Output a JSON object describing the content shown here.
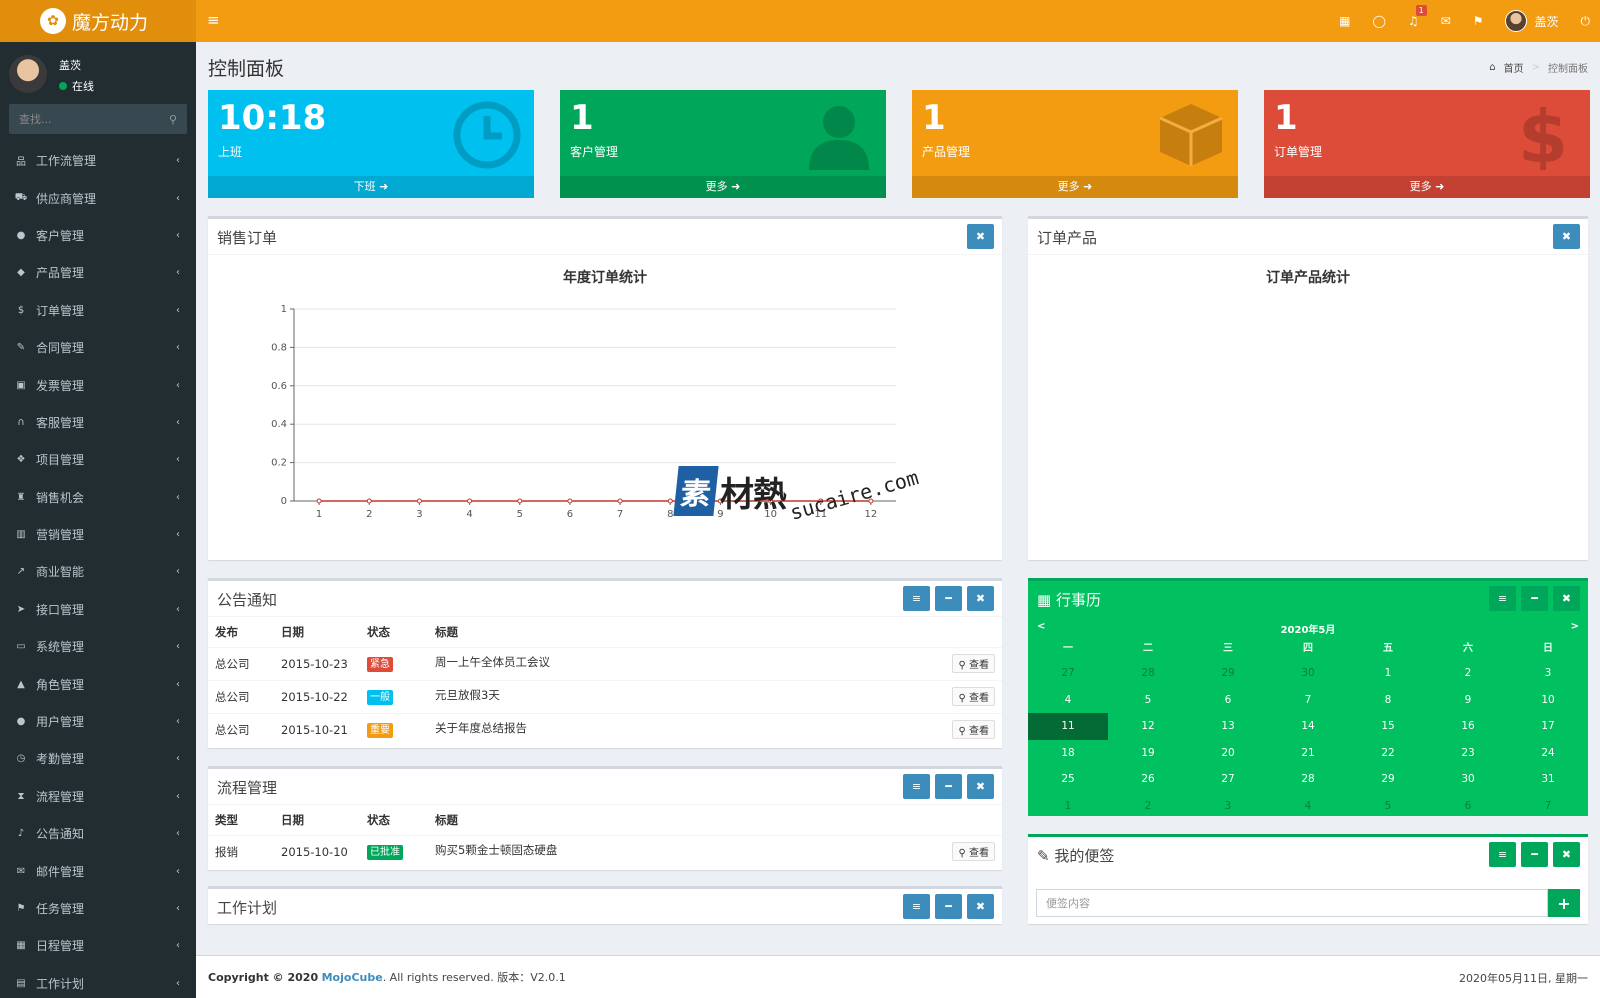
{
  "app": {
    "title": "魔方动力"
  },
  "topbar": {
    "notification_count": "1",
    "user_name": "盖茨"
  },
  "sidebar": {
    "user_name": "盖茨",
    "user_status": "在线",
    "search_placeholder": "查找...",
    "items": [
      {
        "label": "工作流管理",
        "icon": "sitemap-icon",
        "glyph": "品"
      },
      {
        "label": "供应商管理",
        "icon": "truck-icon",
        "glyph": "⛟"
      },
      {
        "label": "客户管理",
        "icon": "user-icon",
        "glyph": "●"
      },
      {
        "label": "产品管理",
        "icon": "cube-icon",
        "glyph": "◆"
      },
      {
        "label": "订单管理",
        "icon": "dollar-icon",
        "glyph": "$"
      },
      {
        "label": "合同管理",
        "icon": "pencil-icon",
        "glyph": "✎"
      },
      {
        "label": "发票管理",
        "icon": "money-icon",
        "glyph": "▣"
      },
      {
        "label": "客服管理",
        "icon": "headphones-icon",
        "glyph": "∩"
      },
      {
        "label": "项目管理",
        "icon": "cubes-icon",
        "glyph": "❖"
      },
      {
        "label": "销售机会",
        "icon": "binoculars-icon",
        "glyph": "♜"
      },
      {
        "label": "营销管理",
        "icon": "bar-chart-icon",
        "glyph": "▥"
      },
      {
        "label": "商业智能",
        "icon": "line-chart-icon",
        "glyph": "↗"
      },
      {
        "label": "接口管理",
        "icon": "paper-plane-icon",
        "glyph": "➤"
      },
      {
        "label": "系统管理",
        "icon": "desktop-icon",
        "glyph": "▭"
      },
      {
        "label": "角色管理",
        "icon": "graduation-cap-icon",
        "glyph": "▲"
      },
      {
        "label": "用户管理",
        "icon": "users-icon",
        "glyph": "●"
      },
      {
        "label": "考勤管理",
        "icon": "clock-icon",
        "glyph": "◷"
      },
      {
        "label": "流程管理",
        "icon": "hourglass-icon",
        "glyph": "⧗"
      },
      {
        "label": "公告通知",
        "icon": "bell-icon",
        "glyph": "♪"
      },
      {
        "label": "邮件管理",
        "icon": "envelope-icon",
        "glyph": "✉"
      },
      {
        "label": "任务管理",
        "icon": "flag-icon",
        "glyph": "⚑"
      },
      {
        "label": "日程管理",
        "icon": "calendar-icon",
        "glyph": "▦"
      },
      {
        "label": "工作计划",
        "icon": "calendar-check-icon",
        "glyph": "▤"
      }
    ]
  },
  "header": {
    "title": "控制面板",
    "breadcrumb_home": "首页",
    "breadcrumb_current": "控制面板"
  },
  "stat_boxes": [
    {
      "value": "10:18",
      "label": "上班",
      "footer": "下班 ➜",
      "color": "#00c0ef"
    },
    {
      "value": "1",
      "label": "客户管理",
      "footer": "更多 ➜",
      "color": "#00a65a"
    },
    {
      "value": "1",
      "label": "产品管理",
      "footer": "更多 ➜",
      "color": "#f39c12"
    },
    {
      "value": "1",
      "label": "订单管理",
      "footer": "更多 ➜",
      "color": "#dd4b39"
    }
  ],
  "sales_box": {
    "title": "销售订单"
  },
  "chart_data": {
    "type": "line",
    "title": "年度订单统计",
    "x": [
      1,
      2,
      3,
      4,
      5,
      6,
      7,
      8,
      9,
      10,
      11,
      12
    ],
    "categories": [
      "1",
      "2",
      "3",
      "4",
      "5",
      "6",
      "7",
      "8",
      "9",
      "10",
      "11",
      "12"
    ],
    "series": [
      {
        "values": [
          0,
          0,
          0,
          0,
          0,
          0,
          0,
          0,
          0,
          0,
          0,
          0
        ],
        "color": "#c0392b"
      }
    ],
    "ylim": [
      0,
      1
    ],
    "yticks": [
      "0",
      "0.2",
      "0.4",
      "0.6",
      "0.8",
      "1"
    ],
    "grid": true
  },
  "products_box": {
    "title": "订单产品",
    "chart_title": "订单产品统计"
  },
  "notice_box": {
    "title": "公告通知",
    "columns": [
      "发布",
      "日期",
      "状态",
      "标题"
    ],
    "rows": [
      {
        "publisher": "总公司",
        "date": "2015-10-23",
        "status": "紧急",
        "status_color": "#dd4b39",
        "title": "周一上午全体员工会议",
        "action": "查看"
      },
      {
        "publisher": "总公司",
        "date": "2015-10-22",
        "status": "一般",
        "status_color": "#00c0ef",
        "title": "元旦放假3天",
        "action": "查看"
      },
      {
        "publisher": "总公司",
        "date": "2015-10-21",
        "status": "重要",
        "status_color": "#f39c12",
        "title": "关于年度总结报告",
        "action": "查看"
      }
    ]
  },
  "process_box": {
    "title": "流程管理",
    "columns": [
      "类型",
      "日期",
      "状态",
      "标题"
    ],
    "rows": [
      {
        "type": "报销",
        "date": "2015-10-10",
        "status": "已批准",
        "status_color": "#00a65a",
        "title": "购买5颗金士顿固态硬盘",
        "action": "查看"
      }
    ]
  },
  "plan_box": {
    "title": "工作计划"
  },
  "calendar": {
    "title": "行事历",
    "prev": "<",
    "next": ">",
    "month": "2020年5月",
    "weekdays": [
      "一",
      "二",
      "三",
      "四",
      "五",
      "六",
      "日"
    ],
    "days": [
      {
        "d": "27",
        "o": 1
      },
      {
        "d": "28",
        "o": 1
      },
      {
        "d": "29",
        "o": 1
      },
      {
        "d": "30",
        "o": 1
      },
      {
        "d": "1"
      },
      {
        "d": "2"
      },
      {
        "d": "3"
      },
      {
        "d": "4"
      },
      {
        "d": "5"
      },
      {
        "d": "6"
      },
      {
        "d": "7"
      },
      {
        "d": "8"
      },
      {
        "d": "9"
      },
      {
        "d": "10"
      },
      {
        "d": "11",
        "t": 1
      },
      {
        "d": "12"
      },
      {
        "d": "13"
      },
      {
        "d": "14"
      },
      {
        "d": "15"
      },
      {
        "d": "16"
      },
      {
        "d": "17"
      },
      {
        "d": "18"
      },
      {
        "d": "19"
      },
      {
        "d": "20"
      },
      {
        "d": "21"
      },
      {
        "d": "22"
      },
      {
        "d": "23"
      },
      {
        "d": "24"
      },
      {
        "d": "25"
      },
      {
        "d": "26"
      },
      {
        "d": "27"
      },
      {
        "d": "28"
      },
      {
        "d": "29"
      },
      {
        "d": "30"
      },
      {
        "d": "31"
      },
      {
        "d": "1",
        "o": 1
      },
      {
        "d": "2",
        "o": 1
      },
      {
        "d": "3",
        "o": 1
      },
      {
        "d": "4",
        "o": 1
      },
      {
        "d": "5",
        "o": 1
      },
      {
        "d": "6",
        "o": 1
      },
      {
        "d": "7",
        "o": 1
      }
    ]
  },
  "notes_box": {
    "title": "我的便签",
    "placeholder": "便签内容",
    "add_label": "+"
  },
  "footer": {
    "copyright": "Copyright © 2020",
    "brand": "MojoCube",
    "rights": ". All rights reserved. 版本：V2.0.1",
    "date": "2020年05月11日, 星期一"
  },
  "watermark": {
    "block": "素",
    "text": "材熱",
    "url": "sucaire.com"
  }
}
